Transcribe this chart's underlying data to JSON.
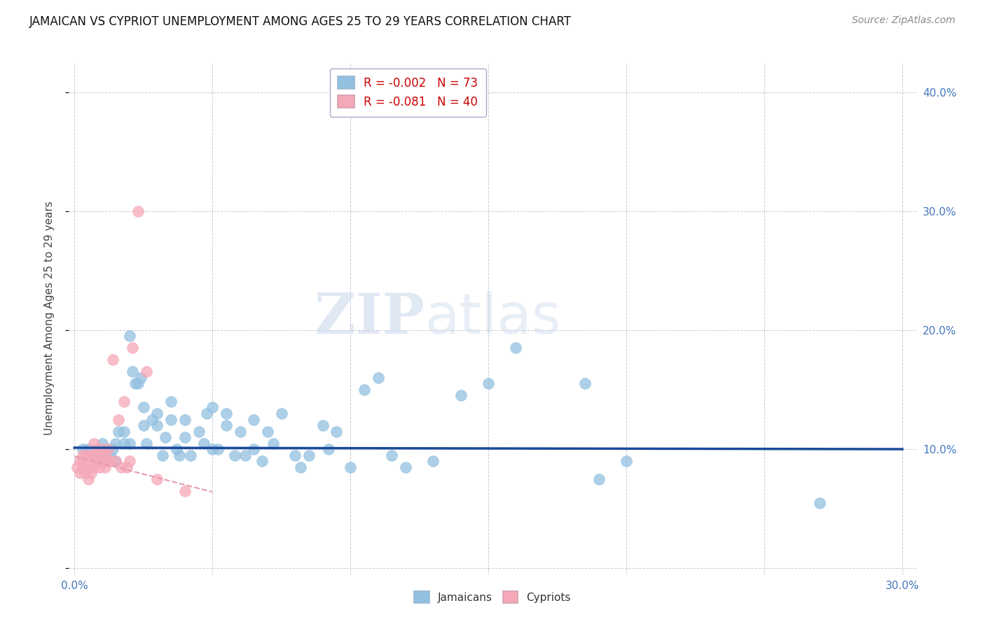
{
  "title": "JAMAICAN VS CYPRIOT UNEMPLOYMENT AMONG AGES 25 TO 29 YEARS CORRELATION CHART",
  "source": "Source: ZipAtlas.com",
  "ylabel": "Unemployment Among Ages 25 to 29 years",
  "xlim": [
    -0.002,
    0.305
  ],
  "ylim": [
    -0.005,
    0.425
  ],
  "x_ticks": [
    0.0,
    0.3
  ],
  "y_ticks": [
    0.1,
    0.2,
    0.3,
    0.4
  ],
  "blue_color": "#92c0e0",
  "pink_color": "#f5a8b8",
  "blue_line_color": "#1a4a9a",
  "pink_line_color": "#e89aaa",
  "watermark_zip": "ZIP",
  "watermark_atlas": "atlas",
  "blue_slope": -0.004,
  "blue_intercept": 0.1012,
  "pink_slope": -0.6,
  "pink_intercept": 0.094,
  "legend_blue_label": "R = -0.002   N = 73",
  "legend_pink_label": "R = -0.081   N = 40",
  "legend_blue_scatter": "Jamaicans",
  "legend_pink_scatter": "Cypriots",
  "jamaican_x": [
    0.003,
    0.005,
    0.007,
    0.008,
    0.009,
    0.01,
    0.01,
    0.011,
    0.012,
    0.013,
    0.014,
    0.015,
    0.015,
    0.016,
    0.018,
    0.018,
    0.02,
    0.02,
    0.021,
    0.022,
    0.023,
    0.024,
    0.025,
    0.025,
    0.026,
    0.028,
    0.03,
    0.03,
    0.032,
    0.033,
    0.035,
    0.035,
    0.037,
    0.038,
    0.04,
    0.04,
    0.042,
    0.045,
    0.047,
    0.048,
    0.05,
    0.05,
    0.052,
    0.055,
    0.055,
    0.058,
    0.06,
    0.062,
    0.065,
    0.065,
    0.068,
    0.07,
    0.072,
    0.075,
    0.08,
    0.082,
    0.085,
    0.09,
    0.092,
    0.095,
    0.1,
    0.105,
    0.11,
    0.115,
    0.12,
    0.13,
    0.14,
    0.15,
    0.16,
    0.185,
    0.19,
    0.2,
    0.27
  ],
  "jamaican_y": [
    0.1,
    0.1,
    0.095,
    0.09,
    0.1,
    0.095,
    0.105,
    0.09,
    0.1,
    0.095,
    0.1,
    0.09,
    0.105,
    0.115,
    0.105,
    0.115,
    0.105,
    0.195,
    0.165,
    0.155,
    0.155,
    0.16,
    0.12,
    0.135,
    0.105,
    0.125,
    0.13,
    0.12,
    0.095,
    0.11,
    0.14,
    0.125,
    0.1,
    0.095,
    0.11,
    0.125,
    0.095,
    0.115,
    0.105,
    0.13,
    0.1,
    0.135,
    0.1,
    0.12,
    0.13,
    0.095,
    0.115,
    0.095,
    0.1,
    0.125,
    0.09,
    0.115,
    0.105,
    0.13,
    0.095,
    0.085,
    0.095,
    0.12,
    0.1,
    0.115,
    0.085,
    0.15,
    0.16,
    0.095,
    0.085,
    0.09,
    0.145,
    0.155,
    0.185,
    0.155,
    0.075,
    0.09,
    0.055
  ],
  "cypriot_x": [
    0.001,
    0.002,
    0.002,
    0.003,
    0.003,
    0.003,
    0.004,
    0.004,
    0.004,
    0.005,
    0.005,
    0.005,
    0.006,
    0.006,
    0.007,
    0.007,
    0.007,
    0.008,
    0.008,
    0.009,
    0.009,
    0.01,
    0.01,
    0.011,
    0.011,
    0.012,
    0.012,
    0.013,
    0.014,
    0.015,
    0.016,
    0.017,
    0.018,
    0.019,
    0.02,
    0.021,
    0.023,
    0.026,
    0.03,
    0.04
  ],
  "cypriot_y": [
    0.085,
    0.08,
    0.09,
    0.085,
    0.09,
    0.095,
    0.08,
    0.085,
    0.095,
    0.075,
    0.085,
    0.095,
    0.08,
    0.09,
    0.085,
    0.095,
    0.105,
    0.09,
    0.1,
    0.085,
    0.095,
    0.09,
    0.1,
    0.085,
    0.095,
    0.09,
    0.1,
    0.09,
    0.175,
    0.09,
    0.125,
    0.085,
    0.14,
    0.085,
    0.09,
    0.185,
    0.3,
    0.165,
    0.075,
    0.065
  ]
}
